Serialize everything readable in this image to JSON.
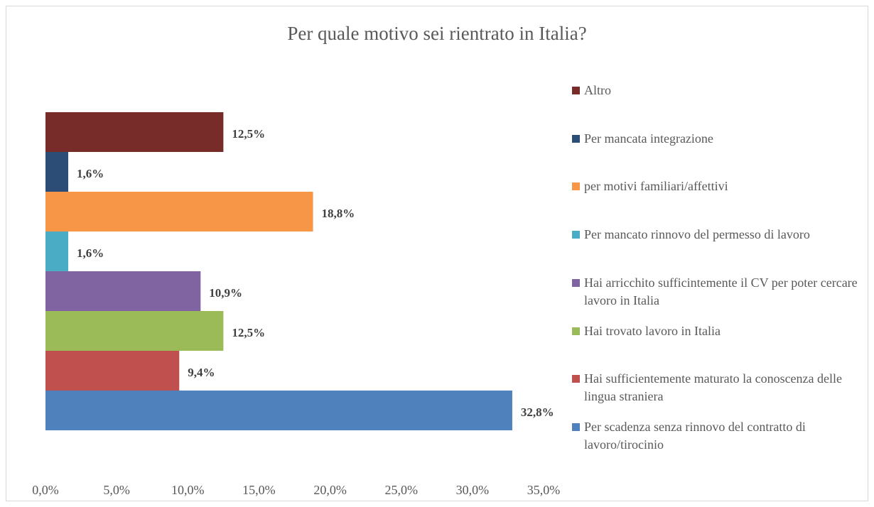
{
  "chart_data": {
    "type": "bar",
    "orientation": "horizontal",
    "title": "Per quale motivo sei rientrato in Italia?",
    "series": [
      {
        "name": "Altro",
        "color": "#772c2a",
        "values": [
          12.5
        ],
        "value_labels": [
          "12,5%"
        ]
      },
      {
        "name": "Per mancata integrazione",
        "color": "#2c4d75",
        "values": [
          1.6
        ],
        "value_labels": [
          "1,6%"
        ]
      },
      {
        "name": "per motivi familiari/affettivi",
        "color": "#f79646",
        "values": [
          18.8
        ],
        "value_labels": [
          "18,8%"
        ]
      },
      {
        "name": "Per mancato rinnovo del permesso di lavoro",
        "color": "#4bacc6",
        "values": [
          1.6
        ],
        "value_labels": [
          "1,6%"
        ]
      },
      {
        "name": "Hai arricchito sufficintemente il CV per poter cercare lavoro in Italia",
        "color": "#8064a2",
        "values": [
          10.9
        ],
        "value_labels": [
          "10,9%"
        ]
      },
      {
        "name": "Hai trovato lavoro in Italia",
        "color": "#9bbb59",
        "values": [
          12.5
        ],
        "value_labels": [
          "12,5%"
        ]
      },
      {
        "name": "Hai sufficientemente maturato la conoscenza delle lingua straniera",
        "color": "#c0504d",
        "values": [
          9.4
        ],
        "value_labels": [
          "9,4%"
        ]
      },
      {
        "name": "Per scadenza senza rinnovo del contratto di lavoro/tirocinio",
        "color": "#4f81bd",
        "values": [
          32.8
        ],
        "value_labels": [
          "32,8%"
        ]
      }
    ],
    "xlim": [
      0,
      35
    ],
    "xticks": [
      {
        "value": 0,
        "label": "0,0%"
      },
      {
        "value": 5,
        "label": "5,0%"
      },
      {
        "value": 10,
        "label": "10,0%"
      },
      {
        "value": 15,
        "label": "15,0%"
      },
      {
        "value": 20,
        "label": "20,0%"
      },
      {
        "value": 25,
        "label": "25,0%"
      },
      {
        "value": 30,
        "label": "30,0%"
      },
      {
        "value": 35,
        "label": "35,0%"
      }
    ],
    "legend": "right",
    "grid": false
  }
}
